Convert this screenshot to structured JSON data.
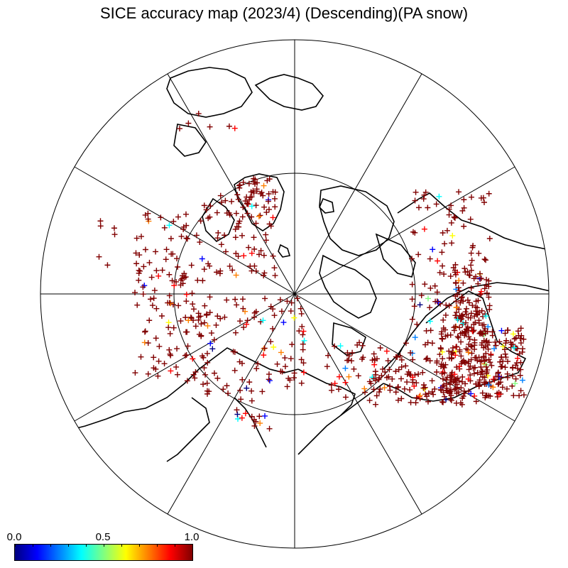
{
  "title": "SICE accuracy map (2023/4) (Descending)(PA snow)",
  "projection": "north-polar-stereographic",
  "graticule": {
    "meridian_step_deg": 30,
    "latitude_circle_deg": 66.5
  },
  "colorbar": {
    "min_label": "0.0",
    "mid_label": "0.5",
    "max_label": "1.0",
    "min": 0.0,
    "max": 1.0,
    "colormap": [
      "#000080",
      "#0000ff",
      "#0080ff",
      "#00ffff",
      "#80ff80",
      "#ffff00",
      "#ff8000",
      "#ff0000",
      "#800000"
    ]
  },
  "marker": {
    "symbol": "+",
    "dominant_color": "#a00000"
  }
}
